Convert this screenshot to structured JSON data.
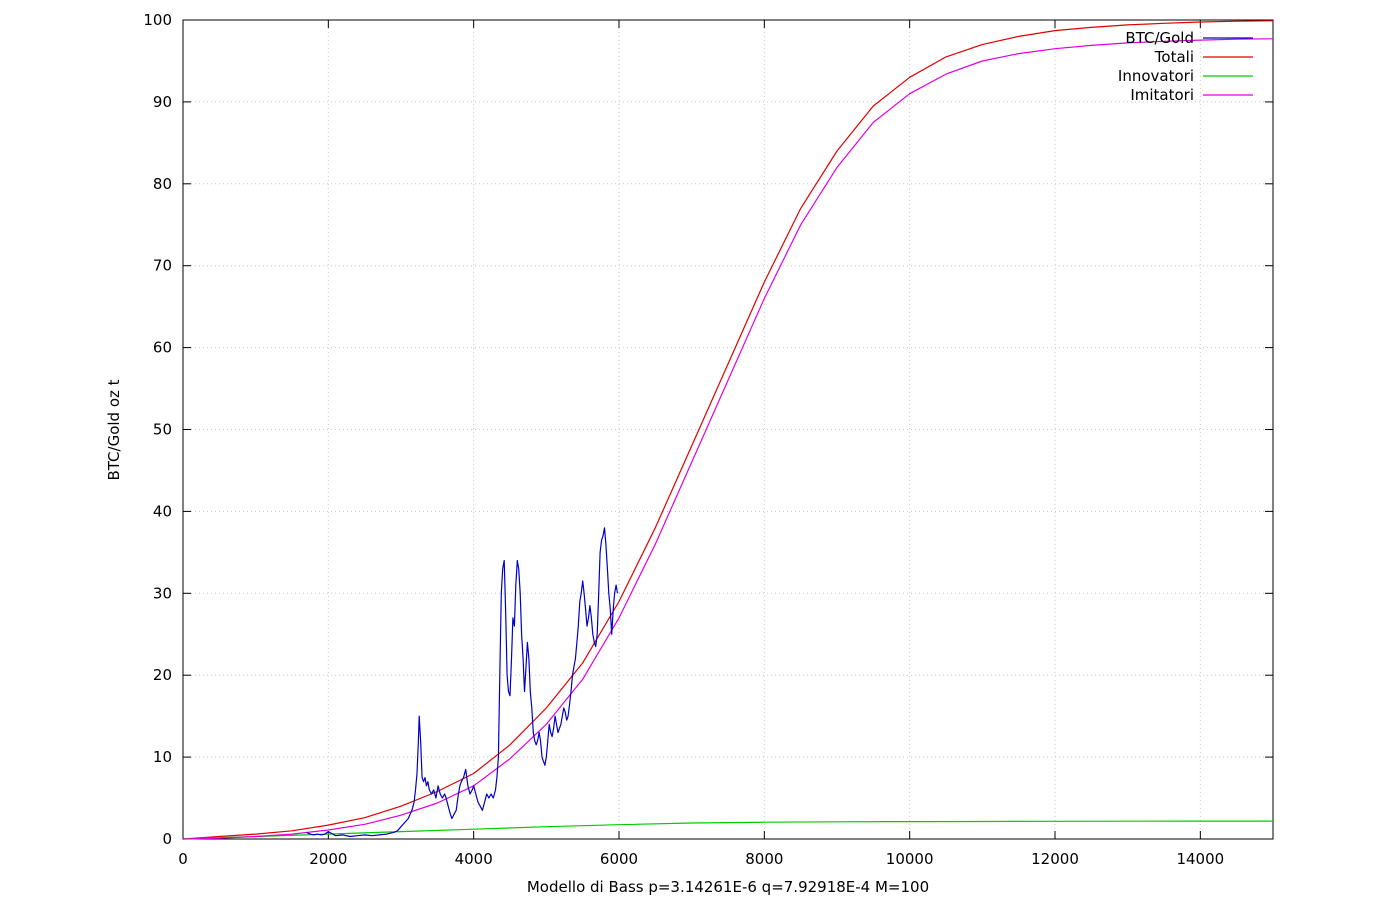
{
  "chart_data": {
    "type": "line",
    "title": "",
    "xlabel": "Modello di Bass p=3.14261E-6 q=7.92918E-4 M=100",
    "ylabel": "BTC/Gold oz t",
    "xlim": [
      0,
      15000
    ],
    "ylim": [
      0,
      100
    ],
    "xticks": [
      0,
      2000,
      4000,
      6000,
      8000,
      10000,
      12000,
      14000
    ],
    "yticks": [
      0,
      10,
      20,
      30,
      40,
      50,
      60,
      70,
      80,
      90,
      100
    ],
    "grid": true,
    "legend_position": "top-right",
    "series": [
      {
        "name": "BTC/Gold",
        "color": "#0000cc",
        "x": [
          1700,
          1750,
          1800,
          1850,
          1900,
          1950,
          2000,
          2100,
          2200,
          2300,
          2400,
          2500,
          2600,
          2700,
          2800,
          2900,
          2950,
          3000,
          3050,
          3100,
          3150,
          3180,
          3200,
          3220,
          3240,
          3250,
          3270,
          3290,
          3310,
          3330,
          3350,
          3370,
          3390,
          3420,
          3450,
          3480,
          3510,
          3540,
          3570,
          3600,
          3620,
          3650,
          3680,
          3700,
          3730,
          3760,
          3790,
          3810,
          3830,
          3860,
          3890,
          3920,
          3950,
          3980,
          4000,
          4030,
          4060,
          4090,
          4120,
          4150,
          4180,
          4210,
          4240,
          4270,
          4300,
          4320,
          4340,
          4360,
          4380,
          4400,
          4420,
          4440,
          4460,
          4480,
          4500,
          4520,
          4540,
          4560,
          4580,
          4600,
          4620,
          4640,
          4660,
          4680,
          4700,
          4720,
          4740,
          4760,
          4780,
          4800,
          4820,
          4840,
          4860,
          4880,
          4900,
          4920,
          4940,
          4960,
          4980,
          5000,
          5020,
          5040,
          5060,
          5080,
          5100,
          5120,
          5140,
          5160,
          5180,
          5200,
          5220,
          5240,
          5260,
          5280,
          5300,
          5320,
          5340,
          5360,
          5380,
          5400,
          5420,
          5440,
          5460,
          5480,
          5500,
          5520,
          5540,
          5560,
          5580,
          5600,
          5620,
          5640,
          5660,
          5680,
          5700,
          5720,
          5740,
          5760,
          5780,
          5800,
          5820,
          5840,
          5860,
          5880,
          5900,
          5920,
          5940,
          5960,
          5980
        ],
        "y": [
          0.8,
          0.6,
          0.5,
          0.6,
          0.5,
          0.6,
          0.9,
          0.4,
          0.5,
          0.3,
          0.4,
          0.5,
          0.4,
          0.5,
          0.6,
          0.8,
          1.0,
          1.5,
          2.0,
          2.5,
          3.5,
          4.5,
          6.0,
          8.0,
          12.0,
          15.0,
          12.0,
          7.5,
          7.0,
          7.5,
          6.5,
          7.0,
          6.0,
          5.5,
          6.0,
          5.0,
          6.5,
          5.5,
          5.0,
          5.5,
          5.0,
          4.0,
          3.0,
          2.5,
          3.0,
          3.5,
          5.5,
          6.5,
          7.0,
          7.5,
          8.5,
          6.5,
          5.5,
          6.0,
          6.5,
          5.5,
          4.5,
          4.0,
          3.5,
          4.5,
          5.5,
          5.0,
          5.5,
          5.0,
          6.0,
          7.5,
          10.0,
          20.0,
          30.0,
          33.0,
          34.0,
          28.0,
          20.0,
          18.0,
          17.5,
          22.0,
          27.0,
          26.0,
          31.0,
          34.0,
          33.0,
          30.0,
          25.0,
          22.0,
          18.0,
          21.0,
          24.0,
          22.0,
          18.0,
          16.0,
          13.0,
          12.0,
          11.5,
          12.0,
          13.0,
          12.0,
          10.0,
          9.5,
          9.0,
          10.0,
          12.0,
          14.0,
          13.0,
          12.5,
          13.5,
          15.0,
          14.0,
          13.0,
          13.5,
          14.0,
          15.0,
          16.0,
          15.5,
          14.5,
          15.0,
          16.5,
          18.0,
          20.0,
          21.0,
          22.0,
          24.0,
          26.0,
          29.0,
          30.0,
          31.5,
          30.0,
          28.0,
          26.0,
          27.0,
          28.5,
          27.0,
          25.0,
          24.0,
          23.5,
          25.0,
          30.0,
          35.0,
          36.5,
          37.0,
          38.0,
          36.0,
          33.0,
          30.0,
          28.0,
          25.0,
          28.0,
          30.0,
          31.0,
          30.0
        ]
      },
      {
        "name": "Totali",
        "color": "#e00000",
        "x": [
          0,
          500,
          1000,
          1500,
          2000,
          2500,
          3000,
          3500,
          4000,
          4500,
          5000,
          5500,
          6000,
          6500,
          7000,
          7500,
          8000,
          8500,
          9000,
          9500,
          10000,
          10500,
          11000,
          11500,
          12000,
          12500,
          13000,
          13500,
          14000,
          14500,
          15000
        ],
        "y": [
          0,
          0.3,
          0.6,
          1.0,
          1.7,
          2.6,
          4.0,
          5.8,
          8.0,
          11.5,
          16.0,
          21.5,
          29.0,
          38.0,
          48.0,
          58.0,
          68.0,
          77.0,
          84.0,
          89.5,
          93.0,
          95.5,
          97.0,
          98.0,
          98.7,
          99.1,
          99.4,
          99.6,
          99.75,
          99.85,
          99.9
        ]
      },
      {
        "name": "Innovatori",
        "color": "#00cc00",
        "x": [
          0,
          1000,
          2000,
          3000,
          4000,
          5000,
          6000,
          7000,
          8000,
          9000,
          10000,
          11000,
          12000,
          13000,
          14000,
          15000
        ],
        "y": [
          0,
          0.3,
          0.6,
          0.9,
          1.2,
          1.5,
          1.75,
          1.95,
          2.05,
          2.1,
          2.12,
          2.14,
          2.16,
          2.17,
          2.18,
          2.19
        ]
      },
      {
        "name": "Imitatori",
        "color": "#e000e0",
        "x": [
          0,
          500,
          1000,
          1500,
          2000,
          2500,
          3000,
          3500,
          4000,
          4500,
          5000,
          5500,
          6000,
          6500,
          7000,
          7500,
          8000,
          8500,
          9000,
          9500,
          10000,
          10500,
          11000,
          11500,
          12000,
          12500,
          13000,
          13500,
          14000,
          14500,
          15000
        ],
        "y": [
          0,
          0.1,
          0.3,
          0.6,
          1.1,
          1.8,
          2.9,
          4.4,
          6.5,
          9.8,
          14.0,
          19.5,
          27.0,
          36.0,
          46.0,
          56.0,
          66.0,
          75.0,
          82.0,
          87.5,
          91.0,
          93.4,
          95.0,
          95.9,
          96.5,
          96.9,
          97.2,
          97.4,
          97.55,
          97.65,
          97.7
        ]
      }
    ]
  }
}
